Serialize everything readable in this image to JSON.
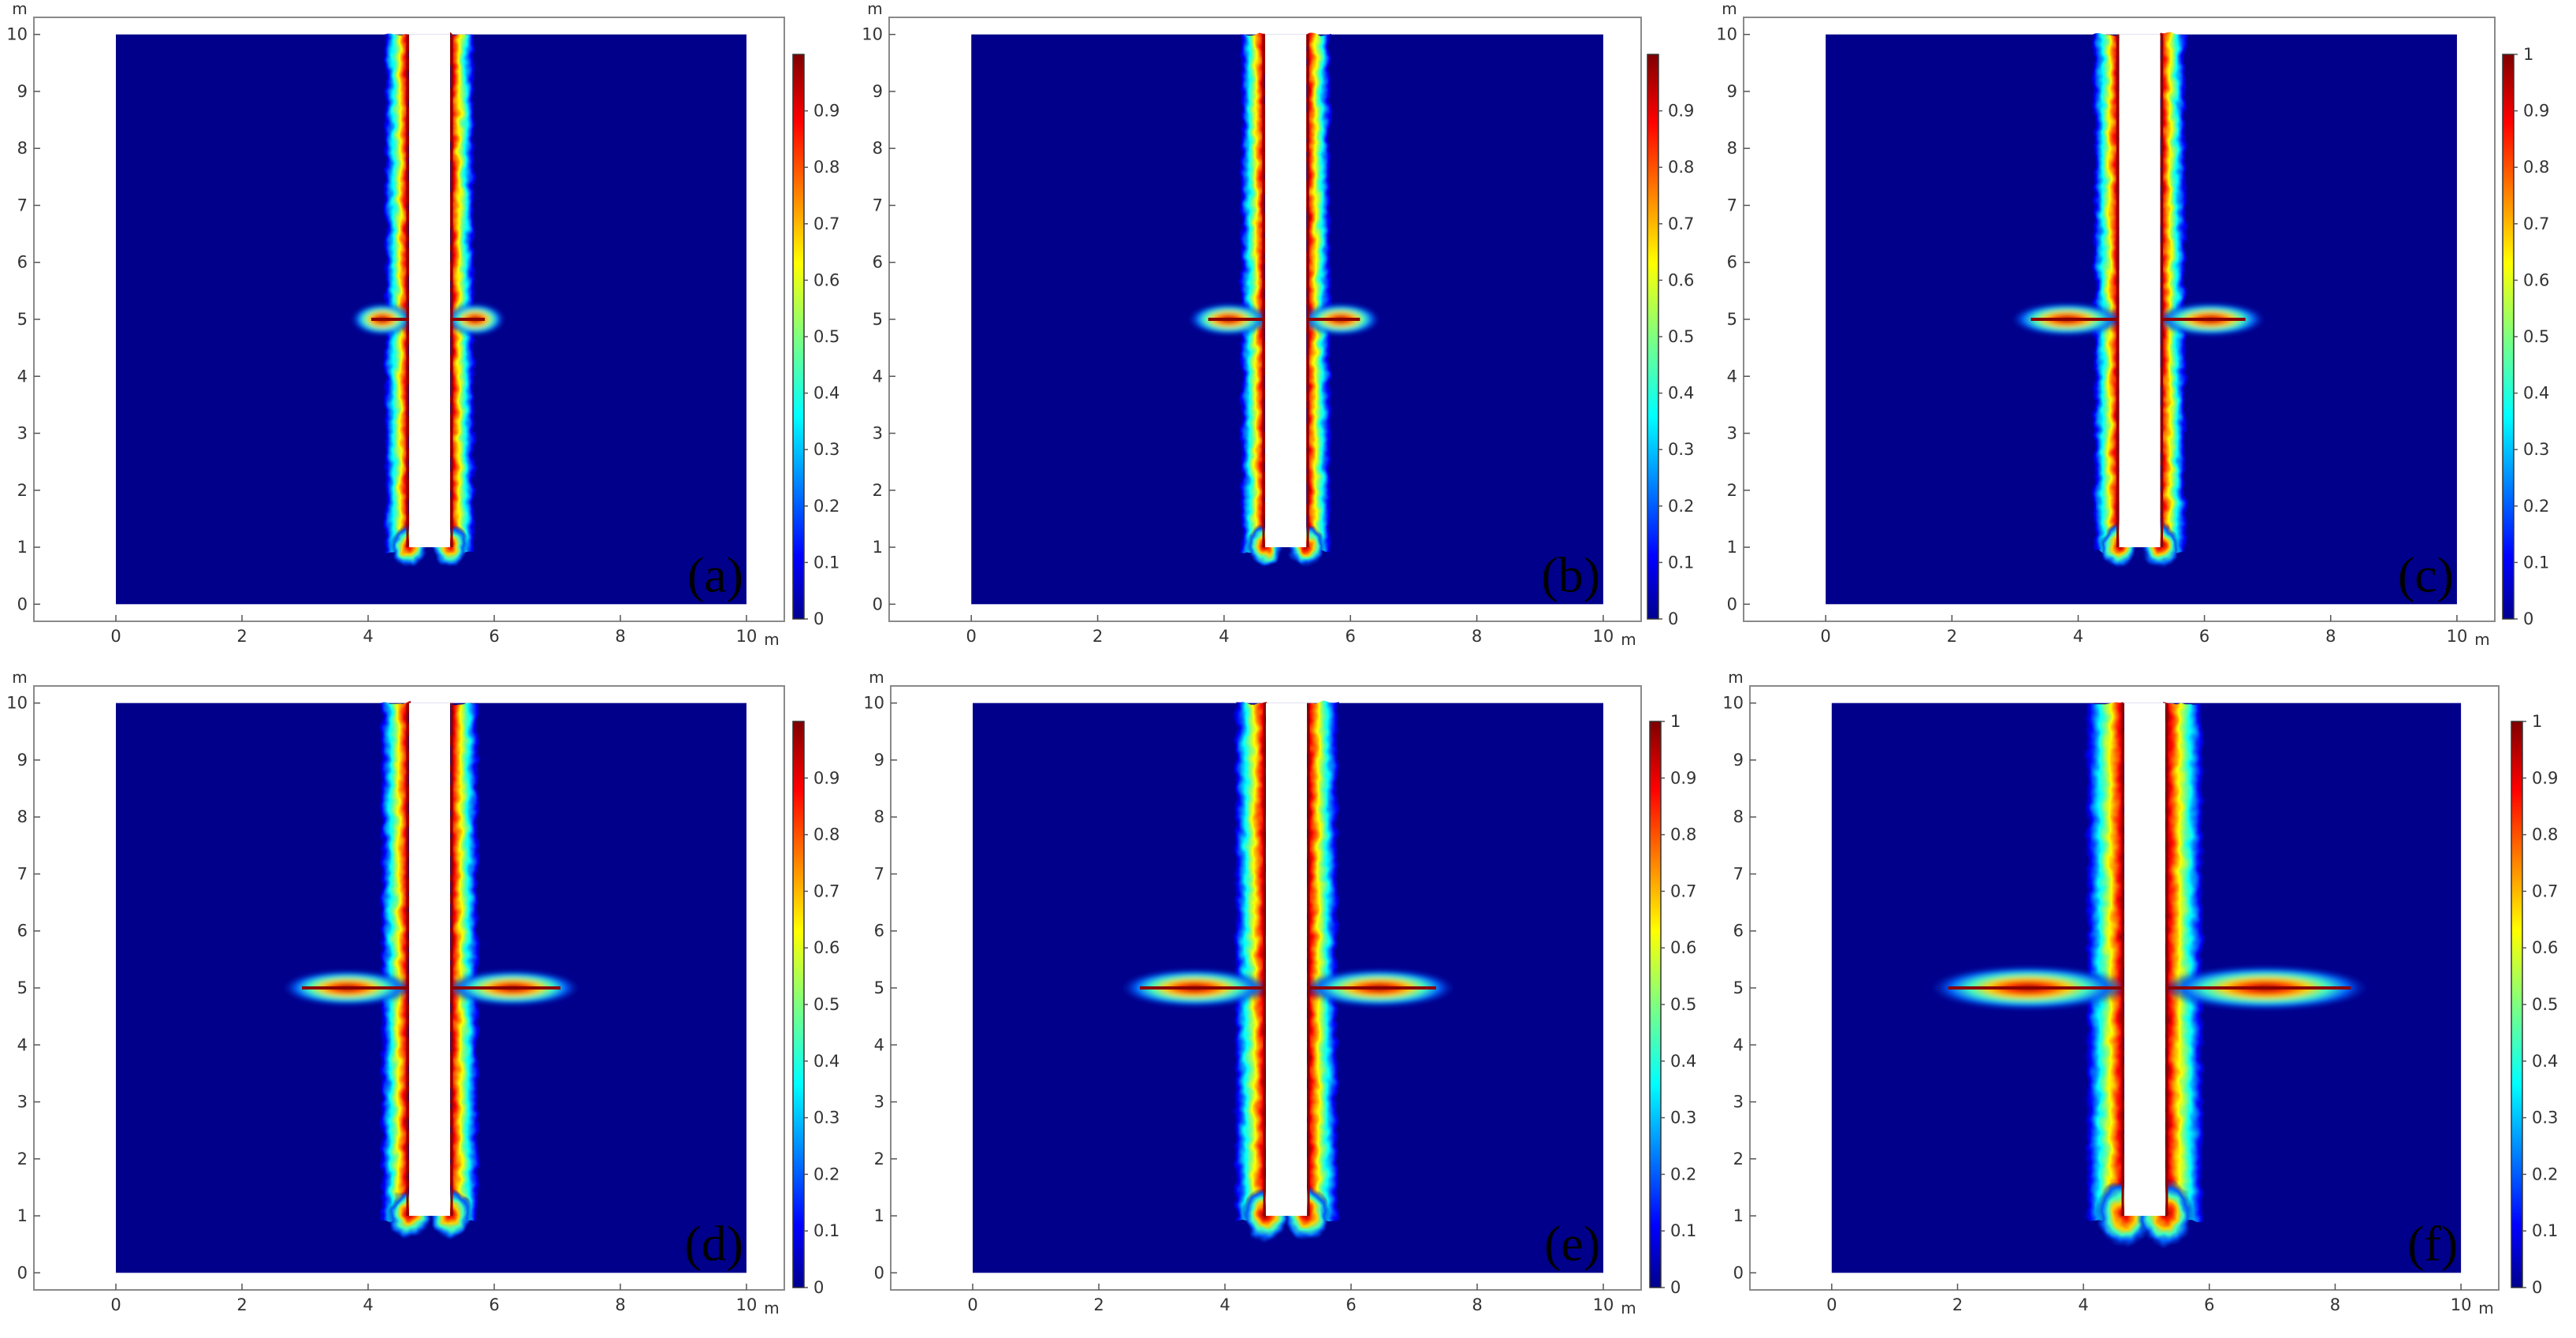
{
  "figure": {
    "colormap": "jet",
    "background_color": "#00008B",
    "high_value_color": "#8B0000",
    "slot_color": "#ffffff"
  },
  "chart_data": [
    {
      "type": "heatmap",
      "panel_label": "(a)",
      "xlabel": "m",
      "ylabel": "m",
      "xlim": [
        -1.3,
        10.6
      ],
      "ylim": [
        -0.3,
        10.3
      ],
      "x_ticks": [
        "0",
        "2",
        "4",
        "6",
        "8",
        "10"
      ],
      "y_ticks": [
        "0",
        "1",
        "2",
        "3",
        "4",
        "5",
        "6",
        "7",
        "8",
        "9",
        "10"
      ],
      "domain": {
        "x": [
          0,
          10
        ],
        "y": [
          0,
          10
        ]
      },
      "slot": {
        "x": [
          4.65,
          5.3
        ],
        "y": [
          1,
          10
        ]
      },
      "branch_y": 5,
      "branch_extent": [
        3.8,
        6.1
      ],
      "band_width": 0.12,
      "intensity": 0.95,
      "colorbar": {
        "min": 0,
        "max": 1,
        "tick_labels": [
          "0",
          "0.1",
          "0.2",
          "0.3",
          "0.4",
          "0.5",
          "0.6",
          "0.7",
          "0.8",
          "0.9"
        ]
      }
    },
    {
      "type": "heatmap",
      "panel_label": "(b)",
      "xlabel": "m",
      "ylabel": "m",
      "xlim": [
        -1.3,
        10.6
      ],
      "ylim": [
        -0.3,
        10.3
      ],
      "x_ticks": [
        "0",
        "2",
        "4",
        "6",
        "8",
        "10"
      ],
      "y_ticks": [
        "0",
        "1",
        "2",
        "3",
        "4",
        "5",
        "6",
        "7",
        "8",
        "9",
        "10"
      ],
      "domain": {
        "x": [
          0,
          10
        ],
        "y": [
          0,
          10
        ]
      },
      "slot": {
        "x": [
          4.65,
          5.3
        ],
        "y": [
          1,
          10
        ]
      },
      "branch_y": 5,
      "branch_extent": [
        3.5,
        6.4
      ],
      "band_width": 0.12,
      "intensity": 0.95,
      "colorbar": {
        "min": 0,
        "max": 1,
        "tick_labels": [
          "0",
          "0.1",
          "0.2",
          "0.3",
          "0.4",
          "0.5",
          "0.6",
          "0.7",
          "0.8",
          "0.9"
        ]
      }
    },
    {
      "type": "heatmap",
      "panel_label": "(c)",
      "xlabel": "m",
      "ylabel": "m",
      "xlim": [
        -1.3,
        10.6
      ],
      "ylim": [
        -0.3,
        10.3
      ],
      "x_ticks": [
        "0",
        "2",
        "4",
        "6",
        "8",
        "10"
      ],
      "y_ticks": [
        "0",
        "1",
        "2",
        "3",
        "4",
        "5",
        "6",
        "7",
        "8",
        "9",
        "10"
      ],
      "domain": {
        "x": [
          0,
          10
        ],
        "y": [
          0,
          10
        ]
      },
      "slot": {
        "x": [
          4.65,
          5.3
        ],
        "y": [
          1,
          10
        ]
      },
      "branch_y": 5,
      "branch_extent": [
        3.0,
        6.9
      ],
      "band_width": 0.13,
      "intensity": 0.95,
      "colorbar": {
        "min": 0,
        "max": 1,
        "tick_labels": [
          "0",
          "0.1",
          "0.2",
          "0.3",
          "0.4",
          "0.5",
          "0.6",
          "0.7",
          "0.8",
          "0.9",
          "1"
        ]
      }
    },
    {
      "type": "heatmap",
      "panel_label": "(d)",
      "xlabel": "m",
      "ylabel": "m",
      "xlim": [
        -1.3,
        10.6
      ],
      "ylim": [
        -0.3,
        10.3
      ],
      "x_ticks": [
        "0",
        "2",
        "4",
        "6",
        "8",
        "10"
      ],
      "y_ticks": [
        "0",
        "1",
        "2",
        "3",
        "4",
        "5",
        "6",
        "7",
        "8",
        "9",
        "10"
      ],
      "domain": {
        "x": [
          0,
          10
        ],
        "y": [
          0,
          10
        ]
      },
      "slot": {
        "x": [
          4.65,
          5.3
        ],
        "y": [
          1,
          10
        ]
      },
      "branch_y": 5,
      "branch_extent": [
        2.7,
        7.3
      ],
      "band_width": 0.15,
      "intensity": 0.97,
      "colorbar": {
        "min": 0,
        "max": 1,
        "tick_labels": [
          "0",
          "0.1",
          "0.2",
          "0.3",
          "0.4",
          "0.5",
          "0.6",
          "0.7",
          "0.8",
          "0.9"
        ]
      }
    },
    {
      "type": "heatmap",
      "panel_label": "(e)",
      "xlabel": "m",
      "ylabel": "m",
      "xlim": [
        -1.3,
        10.6
      ],
      "ylim": [
        -0.3,
        10.3
      ],
      "x_ticks": [
        "0",
        "2",
        "4",
        "6",
        "8",
        "10"
      ],
      "y_ticks": [
        "0",
        "1",
        "2",
        "3",
        "4",
        "5",
        "6",
        "7",
        "8",
        "9",
        "10"
      ],
      "domain": {
        "x": [
          0,
          10
        ],
        "y": [
          0,
          10
        ]
      },
      "slot": {
        "x": [
          4.65,
          5.3
        ],
        "y": [
          1,
          10
        ]
      },
      "branch_y": 5,
      "branch_extent": [
        2.4,
        7.6
      ],
      "band_width": 0.17,
      "intensity": 1.0,
      "colorbar": {
        "min": 0,
        "max": 1,
        "tick_labels": [
          "0",
          "0.1",
          "0.2",
          "0.3",
          "0.4",
          "0.5",
          "0.6",
          "0.7",
          "0.8",
          "0.9",
          "1"
        ]
      }
    },
    {
      "type": "heatmap",
      "panel_label": "(f)",
      "xlabel": "m",
      "ylabel": "m",
      "xlim": [
        -1.3,
        10.6
      ],
      "ylim": [
        -0.3,
        10.3
      ],
      "x_ticks": [
        "0",
        "2",
        "4",
        "6",
        "8",
        "10"
      ],
      "y_ticks": [
        "0",
        "1",
        "2",
        "3",
        "4",
        "5",
        "6",
        "7",
        "8",
        "9",
        "10"
      ],
      "domain": {
        "x": [
          0,
          10
        ],
        "y": [
          0,
          10
        ]
      },
      "slot": {
        "x": [
          4.65,
          5.3
        ],
        "y": [
          1,
          10
        ]
      },
      "branch_y": 5,
      "branch_extent": [
        1.6,
        8.5
      ],
      "band_width": 0.22,
      "intensity": 1.0,
      "colorbar": {
        "min": 0,
        "max": 1,
        "tick_labels": [
          "0",
          "0.1",
          "0.2",
          "0.3",
          "0.4",
          "0.5",
          "0.6",
          "0.7",
          "0.8",
          "0.9",
          "1"
        ]
      }
    }
  ]
}
